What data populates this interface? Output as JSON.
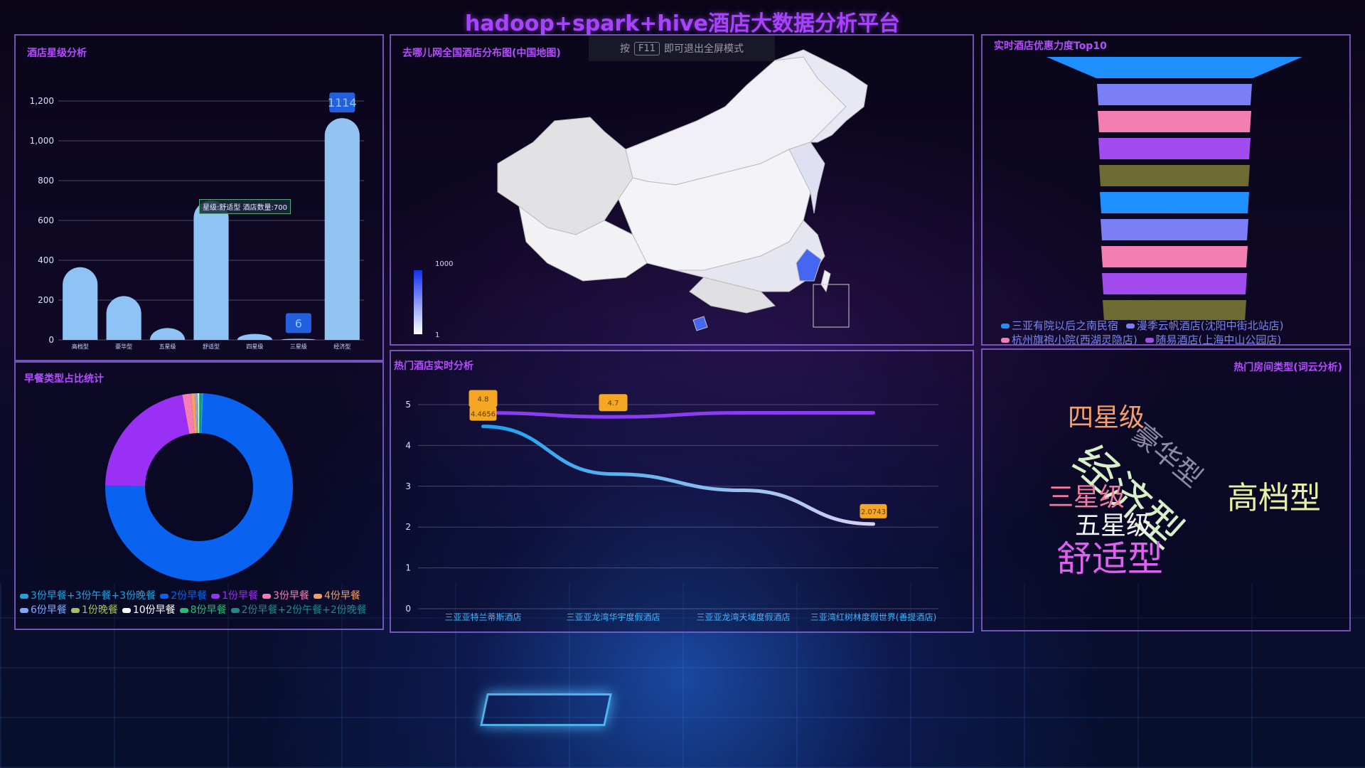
{
  "title": "hadoop+spark+hive酒店大数据分析平台",
  "fullscreen_hint": {
    "prefix": "按",
    "key": "F11",
    "suffix": "即可退出全屏模式"
  },
  "star_panel": {
    "title": "酒店星级分析",
    "tooltip": "星级:舒适型 酒店数量:700",
    "chart_data": {
      "type": "bar",
      "categories": [
        "高档型",
        "豪华型",
        "五星级",
        "舒适型",
        "四星级",
        "三星级",
        "经济型"
      ],
      "values": [
        365,
        220,
        60,
        700,
        30,
        6,
        1114
      ],
      "yticks": [
        "0",
        "200",
        "400",
        "600",
        "800",
        "1,000",
        "1,200"
      ],
      "ylim": [
        0,
        1200
      ],
      "max_label": "1114",
      "min_label": "6",
      "bar_color": "#8fc3f5"
    }
  },
  "map_panel": {
    "title": "去哪儿网全国酒店分布图(中国地图)",
    "scale_max": "1000",
    "scale_min": "1"
  },
  "top_panel": {
    "title": "实时酒店优惠力度Top10",
    "chart_data": {
      "type": "funnel",
      "colors": [
        "#1e90ff",
        "#7b7ff5",
        "#f47eb1",
        "#a24cf0",
        "#6c6b32",
        "#1e90ff",
        "#7b7ff5",
        "#f47eb1",
        "#a24cf0",
        "#6c6b32"
      ]
    },
    "legend": [
      "三亚有院以后之南民宿",
      "漫季云帆酒店(沈阳中街北站店)",
      "杭州旗袍小院(西湖灵隐店)",
      "随易酒店(上海中山公园店)"
    ]
  },
  "breakfast_panel": {
    "title": "早餐类型占比统计",
    "chart_data": {
      "type": "pie",
      "labels": [
        "3份早餐+3份午餐+3份晚餐",
        "2份早餐",
        "1份早餐",
        "3份早餐",
        "4份早餐",
        "6份早餐",
        "1份晚餐",
        "10份早餐",
        "8份早餐",
        "2份早餐+2份午餐+2份晚餐"
      ],
      "values": [
        0.3,
        75,
        22,
        1.5,
        0.7,
        0.3,
        0.2,
        0.2,
        0.2,
        0.2
      ],
      "colors": [
        "#1fa3e0",
        "#0a63f0",
        "#9b30f5",
        "#f47eb1",
        "#f2a060",
        "#7fa9ff",
        "#a8c060",
        "#ffffff",
        "#20c070",
        "#208888"
      ]
    }
  },
  "hot_panel": {
    "title": "热门酒店实时分析",
    "chart_data": {
      "type": "line",
      "categories": [
        "三亚亚特兰蒂斯酒店",
        "三亚亚龙湾华宇度假酒店",
        "三亚亚龙湾天域度假酒店",
        "三亚湾红树林度假世界(善提酒店)"
      ],
      "series": [
        {
          "values": [
            4.8,
            4.7,
            4.8,
            4.8
          ],
          "color": "#8a3cf0"
        },
        {
          "values": [
            4.4656,
            3.3,
            2.9,
            2.0743
          ],
          "color": "#2aa8f0"
        }
      ],
      "ylim": [
        0,
        5
      ],
      "yticks": [
        "0",
        "1",
        "2",
        "3",
        "4",
        "5"
      ],
      "markers": [
        {
          "series": 0,
          "index": 0,
          "label": "4.8"
        },
        {
          "series": 0,
          "index": 1,
          "label": "4.7"
        },
        {
          "series": 1,
          "index": 0,
          "label": "4.4656"
        },
        {
          "series": 1,
          "index": 3,
          "label": "2.0743"
        }
      ]
    }
  },
  "room_panel": {
    "title": "热门房间类型(词云分析)",
    "words": [
      {
        "text": "四星级",
        "color": "#f4a06a"
      },
      {
        "text": "豪华型",
        "color": "#8d8aa8"
      },
      {
        "text": "经济型",
        "color": "#d8f0c8"
      },
      {
        "text": "三星级",
        "color": "#f07aa0"
      },
      {
        "text": "高档型",
        "color": "#e8f0a0"
      },
      {
        "text": "五星级",
        "color": "#f2f2f2"
      },
      {
        "text": "舒适型",
        "color": "#e060f0"
      }
    ]
  }
}
